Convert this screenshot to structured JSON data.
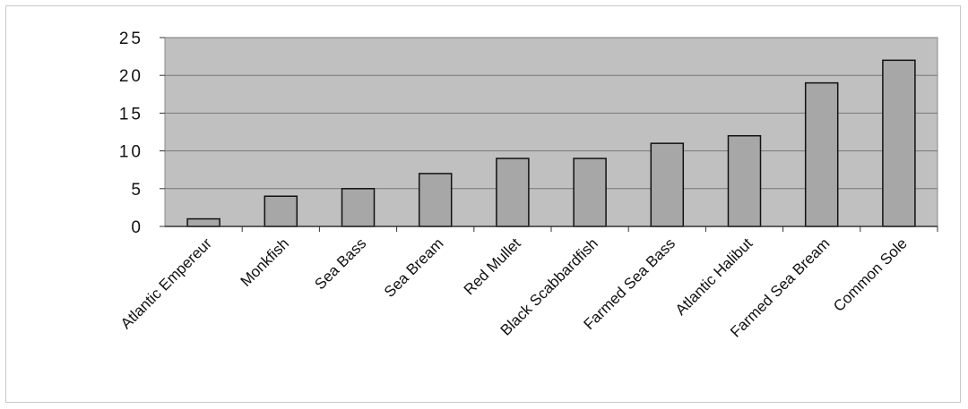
{
  "chart_data": {
    "type": "bar",
    "title": "",
    "xlabel": "",
    "ylabel": "",
    "categories": [
      "Atlantic Empereur",
      "Monkfish",
      "Sea Bass",
      "Sea Bream",
      "Red Mullet",
      "Black Scabbardfish",
      "Farmed Sea Bass",
      "Atlantic Halibut",
      "Farmed Sea Bream",
      "Common Sole"
    ],
    "values": [
      1,
      4,
      5,
      7,
      9,
      9,
      11,
      12,
      19,
      22
    ],
    "ylim": [
      0,
      25
    ],
    "yticks": [
      "0",
      "5",
      "10",
      "15",
      "20",
      "25"
    ],
    "grid": true,
    "legend": "none",
    "colors": {
      "plot_background": "#c0c0c0",
      "bar_fill": "#a7a7a7",
      "bar_stroke": "#111111",
      "gridline": "#777777"
    }
  }
}
